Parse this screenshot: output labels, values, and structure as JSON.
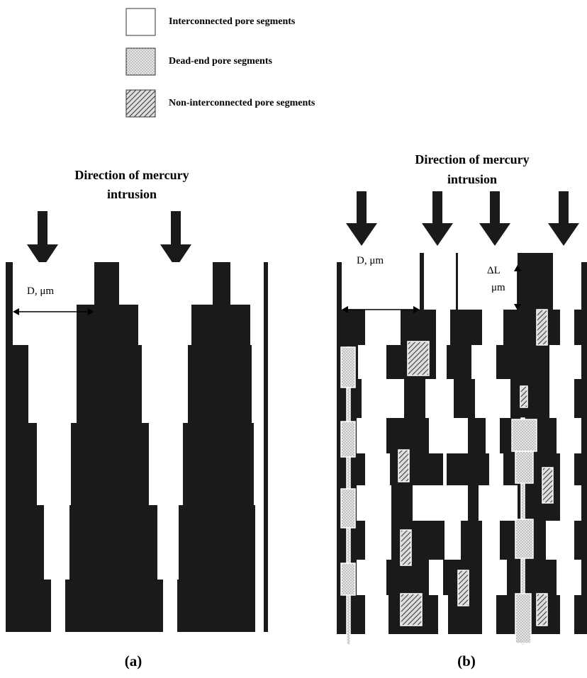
{
  "legend": [
    {
      "label": "Interconnected pore segments"
    },
    {
      "label": "Dead-end pore segments"
    },
    {
      "label": "Non-interconnected pore segments"
    }
  ],
  "panels": [
    {
      "heading": [
        "Direction of mercury",
        "intrusion"
      ],
      "dimension_label": "D, μm",
      "caption": "(a)"
    },
    {
      "heading": [
        "Direction of mercury",
        "intrusion"
      ],
      "dimension_label": "D, μm",
      "length_label": [
        "ΔL",
        "μm"
      ],
      "caption": "(b)"
    }
  ]
}
